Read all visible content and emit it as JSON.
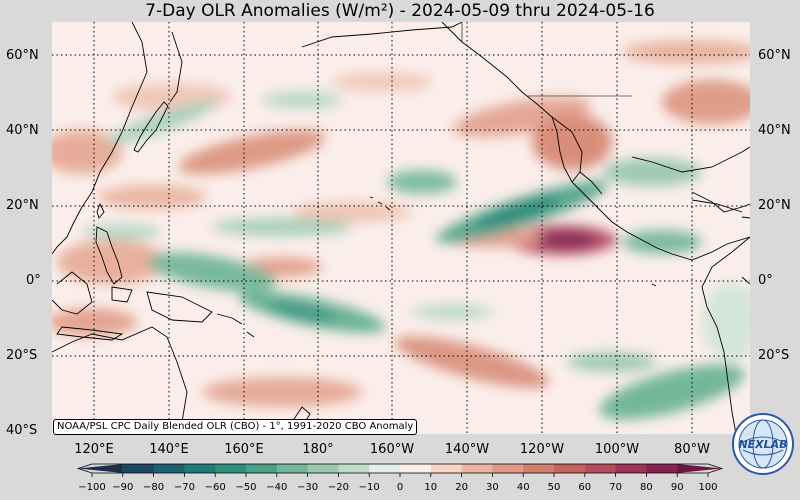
{
  "title": "7-Day OLR Anomalies (W/m²) - 2024-05-09 thru 2024-05-16",
  "lat_labels": [
    "60°N",
    "40°N",
    "20°N",
    "0°",
    "20°S",
    "40°S"
  ],
  "lon_labels": [
    "120°E",
    "140°E",
    "160°E",
    "180°",
    "160°W",
    "140°W",
    "120°W",
    "100°W",
    "80°W"
  ],
  "credit": "NOAA/PSL CPC Daily Blended OLR (CBO) - 1°, 1991-2020 CBO Anomaly",
  "colorbar": {
    "ticks": [
      "−100",
      "−90",
      "−80",
      "−70",
      "−60",
      "−50",
      "−40",
      "−30",
      "−20",
      "−10",
      "0",
      "10",
      "20",
      "30",
      "40",
      "50",
      "60",
      "70",
      "80",
      "90",
      "100"
    ],
    "colors": [
      "#1c2f4a",
      "#1d4662",
      "#1e6070",
      "#217a78",
      "#2e8f7f",
      "#4aa187",
      "#72b699",
      "#9bcab0",
      "#c2dcc9",
      "#e5eee7",
      "#fbeee9",
      "#f6d4c8",
      "#eab5a3",
      "#df9a86",
      "#d17f6d",
      "#c4645d",
      "#b44c59",
      "#9d3556",
      "#862451",
      "#6b1745"
    ]
  },
  "logo": {
    "label": "NEXLAB",
    "icon": "nexlab-globe-logo"
  },
  "anomalies": [
    {
      "lon": 160,
      "lat": 18,
      "value": 30
    },
    {
      "lon": 250,
      "lat": 11,
      "value": 70
    },
    {
      "lon": 232,
      "lat": 18,
      "value": -55
    },
    {
      "lon": 150,
      "lat": 3,
      "value": -45
    },
    {
      "lon": 170,
      "lat": -8,
      "value": -50
    }
  ]
}
